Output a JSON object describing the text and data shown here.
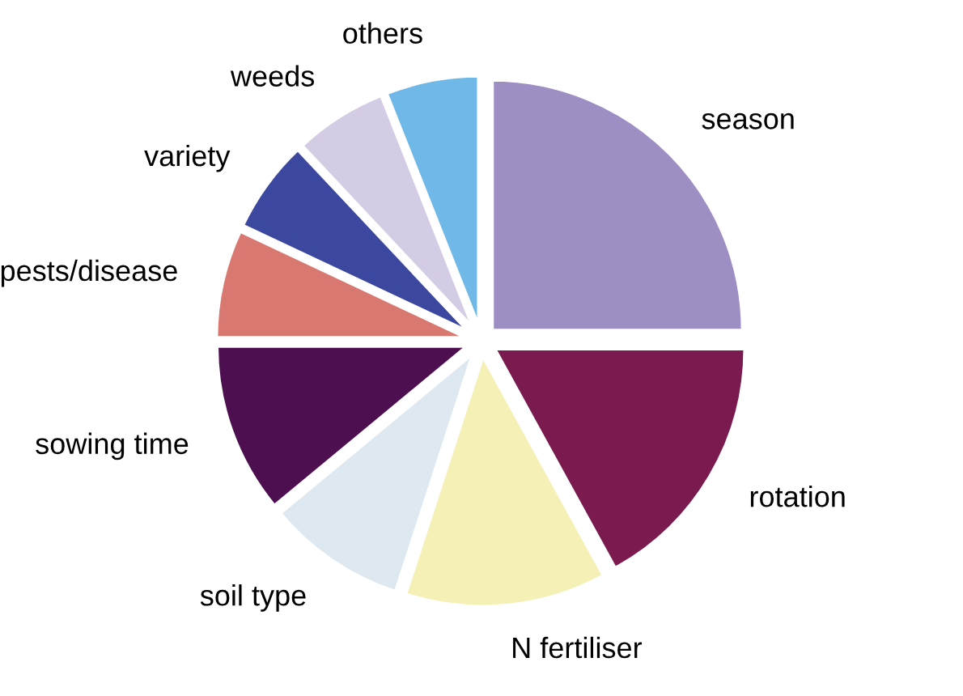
{
  "chart_data": {
    "type": "pie",
    "categories": [
      "season",
      "rotation",
      "N fertiliser",
      "soil type",
      "sowing time",
      "pests/disease",
      "variety",
      "weeds",
      "others"
    ],
    "values": [
      25,
      17,
      13,
      9,
      11,
      7,
      6,
      6,
      6
    ],
    "colors": [
      "#9d8fc4",
      "#7a1a4f",
      "#f5f0b5",
      "#dde8f0",
      "#4d0f50",
      "#d97870",
      "#3c48a0",
      "#d4cce4",
      "#70b8e8"
    ]
  }
}
